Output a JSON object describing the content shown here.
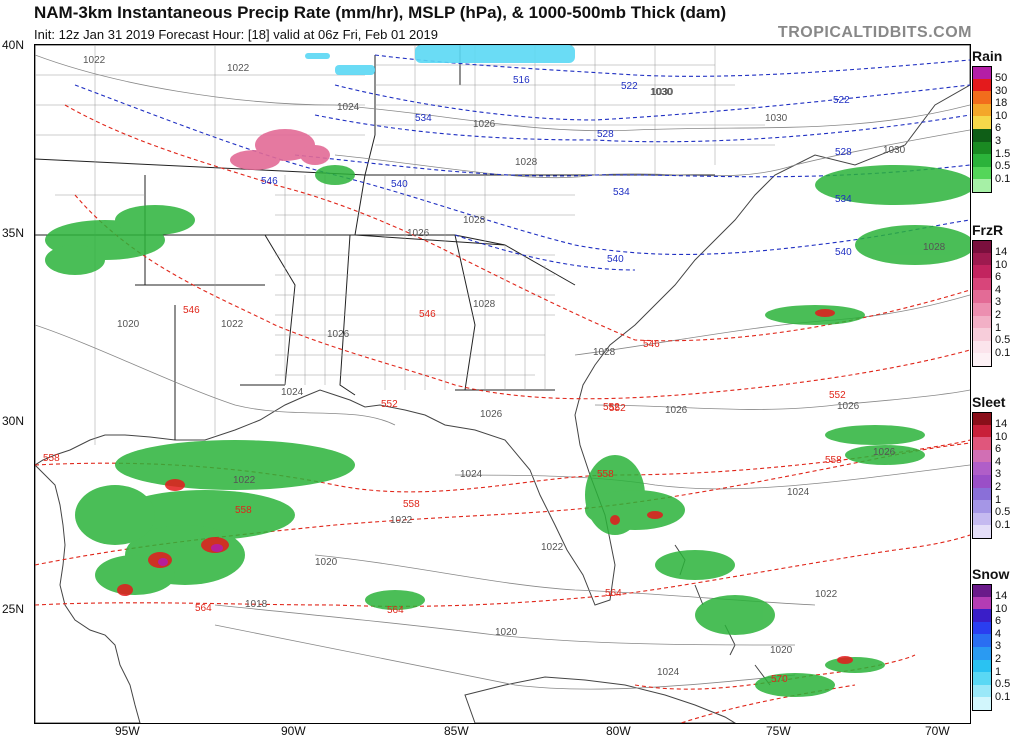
{
  "header": {
    "title": "NAM-3km Instantaneous Precip Rate (mm/hr), MSLP (hPa), & 1000-500mb Thick (dam)",
    "subtitle": "Init: 12z Jan 31 2019   Forecast Hour: [18]   valid at 06z Fri, Feb 01 2019",
    "brand": "TROPICALTIDBITS.COM"
  },
  "axes": {
    "lat_labels": [
      "40N",
      "35N",
      "30N",
      "25N"
    ],
    "lon_labels": [
      "95W",
      "90W",
      "85W",
      "80W",
      "75W",
      "70W"
    ]
  },
  "legends": [
    {
      "name": "Rain",
      "colors": [
        "#b41ea6",
        "#e41a1c",
        "#f26d1c",
        "#f4a72a",
        "#f6d84a",
        "#0f5e17",
        "#1a8a22",
        "#2bb33a",
        "#54d659",
        "#a6f0a6"
      ],
      "values": [
        "50",
        "30",
        "18",
        "10",
        "6",
        "3",
        "1.5",
        "0.5",
        "0.1"
      ]
    },
    {
      "name": "FrzR",
      "colors": [
        "#7a0f3d",
        "#9e1a4f",
        "#c2245f",
        "#d8457a",
        "#e36b96",
        "#ec8fb0",
        "#f2b0c6",
        "#f7cdda",
        "#fbe4ec",
        "#fdf1f5"
      ],
      "values": [
        "14",
        "10",
        "6",
        "4",
        "3",
        "2",
        "1",
        "0.5",
        "0.1"
      ]
    },
    {
      "name": "Sleet",
      "colors": [
        "#8a0f1a",
        "#c8203a",
        "#e0567c",
        "#d16fb4",
        "#b05ec8",
        "#9a4fc7",
        "#8a6fd8",
        "#a596e6",
        "#c5baf0",
        "#e4def8"
      ],
      "values": [
        "14",
        "10",
        "6",
        "4",
        "3",
        "2",
        "1",
        "0.5",
        "0.1"
      ]
    },
    {
      "name": "Snow",
      "colors": [
        "#6a1a8a",
        "#b43cb4",
        "#3a1ec8",
        "#2a3ef0",
        "#2a6ef2",
        "#2a9af2",
        "#2ac2f2",
        "#5ad8f4",
        "#9ae8f8",
        "#d2f6fc"
      ],
      "values": [
        "14",
        "10",
        "6",
        "4",
        "3",
        "2",
        "1",
        "0.5",
        "0.1"
      ]
    }
  ],
  "pressure_labels": [
    "1022",
    "1022",
    "1024",
    "1026",
    "1028",
    "1030",
    "1030",
    "1030",
    "1030",
    "1028",
    "1028",
    "1026",
    "1026",
    "1024",
    "1022",
    "1020",
    "1026",
    "1024",
    "1026",
    "1028",
    "1028",
    "1026",
    "1024",
    "1022",
    "1020",
    "1020",
    "1018",
    "1022",
    "1022",
    "1020",
    "1024",
    "1022",
    "1026"
  ],
  "thickness_labels_blue": [
    "516",
    "522",
    "522",
    "528",
    "528",
    "534",
    "534",
    "534",
    "540",
    "540",
    "540",
    "546"
  ],
  "thickness_labels_red": [
    "546",
    "546",
    "546",
    "552",
    "552",
    "552",
    "552",
    "558",
    "558",
    "558",
    "558",
    "558",
    "564",
    "564",
    "564",
    "570"
  ]
}
